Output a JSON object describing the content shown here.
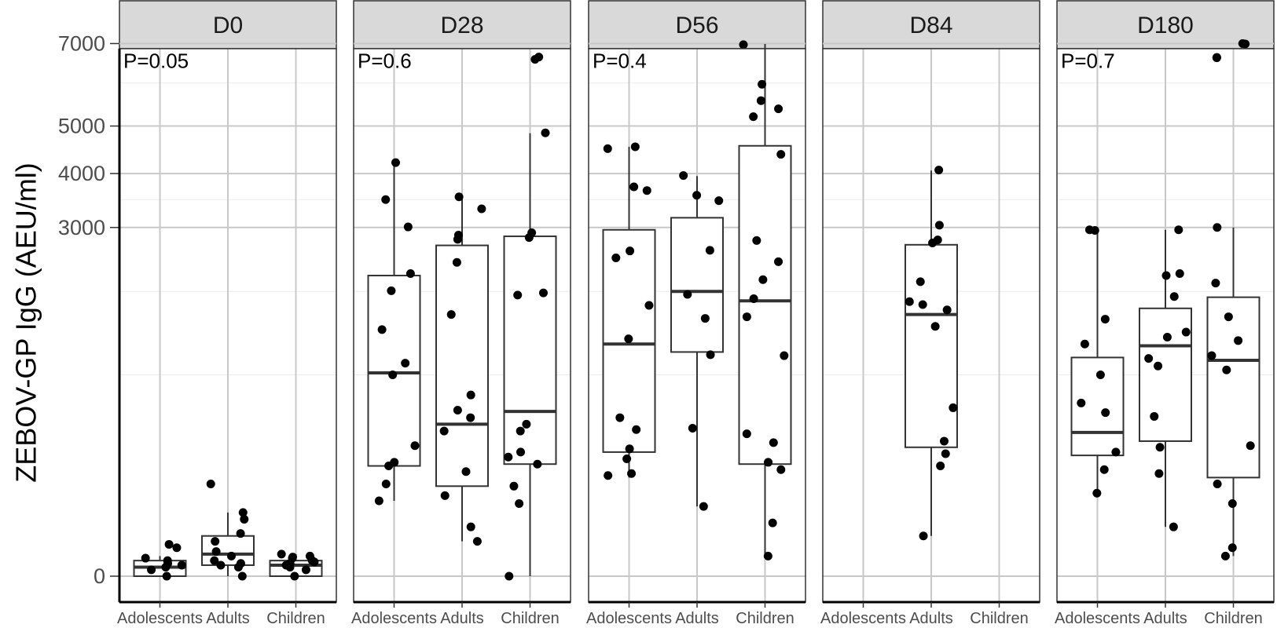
{
  "chart_data": {
    "type": "box",
    "ylabel": "ZEBOV-GP IgG (AEU/ml)",
    "xlabel": "",
    "categories": [
      "Adolescents",
      "Adults",
      "Children"
    ],
    "y_scale": "sqrt",
    "ylim": [
      0,
      7400
    ],
    "y_ticks": [
      0,
      3000,
      4000,
      5000,
      7000
    ],
    "y_minor_gridlines": [
      1000,
      2000,
      3500,
      6000
    ],
    "grid": true,
    "facets": [
      {
        "label": "D0",
        "p_value": "P=0.05",
        "groups": [
          {
            "name": "Adolescents",
            "box": {
              "q1": 0,
              "median": 2,
              "q3": 6,
              "lower": 0,
              "upper": 10
            },
            "points": [
              0,
              1,
              2,
              3,
              4,
              6,
              8,
              20,
              25
            ]
          },
          {
            "name": "Adults",
            "box": {
              "q1": 3,
              "median": 12,
              "q3": 40,
              "lower": 0,
              "upper": 100
            },
            "points": [
              0,
              2,
              3,
              4,
              6,
              10,
              15,
              30,
              45,
              80,
              100,
              210
            ]
          },
          {
            "name": "Children",
            "box": {
              "q1": 0,
              "median": 3,
              "q3": 6,
              "lower": 0,
              "upper": 12
            },
            "points": [
              0,
              1,
              2,
              3,
              4,
              5,
              6,
              8,
              9,
              10,
              12
            ]
          }
        ]
      },
      {
        "label": "D28",
        "p_value": "P=0.6",
        "groups": [
          {
            "name": "Adolescents",
            "box": {
              "q1": 300,
              "median": 1020,
              "q3": 2230,
              "lower": 140,
              "upper": 4210
            },
            "points": [
              140,
              210,
              300,
              320,
              420,
              1000,
              1120,
              1500,
              2010,
              2260,
              3010,
              3500,
              4220
            ]
          },
          {
            "name": "Adults",
            "box": {
              "q1": 200,
              "median": 570,
              "q3": 2700,
              "lower": 30,
              "upper": 3530
            },
            "points": [
              30,
              60,
              160,
              270,
              520,
              620,
              680,
              810,
              1690,
              2430,
              2800,
              2870,
              3330,
              3550
            ]
          },
          {
            "name": "Children",
            "box": {
              "q1": 310,
              "median": 670,
              "q3": 2850,
              "lower": 0,
              "upper": 4840
            },
            "points": [
              0,
              130,
              200,
              310,
              350,
              380,
              520,
              570,
              1950,
              1980,
              2830,
              2910,
              4850,
              6590,
              6650
            ]
          }
        ]
      },
      {
        "label": "D56",
        "p_value": "P=0.4",
        "groups": [
          {
            "name": "Adolescents",
            "box": {
              "q1": 380,
              "median": 1330,
              "q3": 2960,
              "lower": 240,
              "upper": 4550
            },
            "points": [
              250,
              260,
              340,
              400,
              530,
              620,
              1390,
              1810,
              2500,
              2610,
              3670,
              3740,
              4510,
              4550
            ]
          },
          {
            "name": "Adults",
            "box": {
              "q1": 1240,
              "median": 2000,
              "q3": 3170,
              "lower": 120,
              "upper": 3950
            },
            "points": [
              120,
              540,
              1210,
              1640,
              1960,
              2620,
              3480,
              3580,
              3960
            ]
          },
          {
            "name": "Children",
            "box": {
              "q1": 310,
              "median": 1870,
              "q3": 4570,
              "lower": 10,
              "upper": 6990
            },
            "points": [
              10,
              70,
              280,
              320,
              440,
              500,
              1200,
              1660,
              1900,
              2170,
              2440,
              2780,
              4390,
              5210,
              5390,
              5580,
              5970,
              6970
            ]
          }
        ]
      },
      {
        "label": "D84",
        "p_value": "",
        "groups": [
          {
            "name": "Adolescents",
            "box": null,
            "points": []
          },
          {
            "name": "Adults",
            "box": {
              "q1": 410,
              "median": 1690,
              "q3": 2710,
              "lower": 40,
              "upper": 4060
            },
            "points": [
              40,
              300,
              370,
              450,
              700,
              1540,
              1750,
              1820,
              1860,
              2140,
              2740,
              2790,
              3040,
              4070
            ]
          },
          {
            "name": "Children",
            "box": null,
            "points": []
          }
        ]
      },
      {
        "label": "D180",
        "p_value": "P=0.7",
        "groups": [
          {
            "name": "Adolescents",
            "box": {
              "q1": 360,
              "median": 510,
              "q3": 1180,
              "lower": 180,
              "upper": 2960
            },
            "points": [
              170,
              280,
              380,
              660,
              740,
              1000,
              1330,
              1630,
              2950,
              2960
            ]
          },
          {
            "name": "Adults",
            "box": {
              "q1": 450,
              "median": 1310,
              "q3": 1770,
              "lower": 60,
              "upper": 2960
            },
            "points": [
              60,
              260,
              410,
              630,
              1090,
              1170,
              1410,
              1470,
              1930,
              2230,
              2260,
              2960
            ]
          },
          {
            "name": "Children",
            "box": {
              "q1": 240,
              "median": 1150,
              "q3": 1920,
              "lower": 10,
              "upper": 3000
            },
            "points": [
              10,
              20,
              130,
              210,
              420,
              1050,
              1200,
              1370,
              1660,
              2120,
              3000,
              6630,
              6640,
              6990,
              7000
            ]
          }
        ]
      }
    ]
  }
}
